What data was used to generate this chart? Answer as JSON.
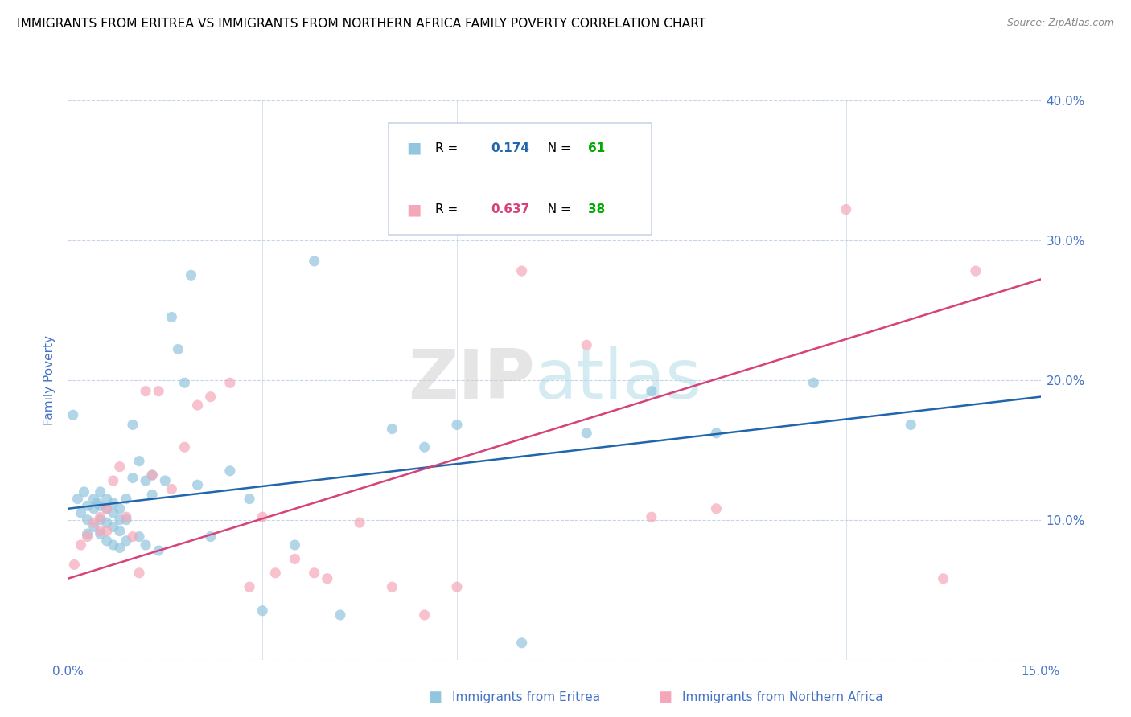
{
  "title": "IMMIGRANTS FROM ERITREA VS IMMIGRANTS FROM NORTHERN AFRICA FAMILY POVERTY CORRELATION CHART",
  "source": "Source: ZipAtlas.com",
  "xlabel_blue": "Immigrants from Eritrea",
  "xlabel_pink": "Immigrants from Northern Africa",
  "ylabel": "Family Poverty",
  "xlim": [
    0.0,
    0.15
  ],
  "ylim": [
    0.0,
    0.4
  ],
  "yticks": [
    0.0,
    0.1,
    0.2,
    0.3,
    0.4
  ],
  "xticks": [
    0.0,
    0.03,
    0.06,
    0.09,
    0.12,
    0.15
  ],
  "legend_r1": "0.174",
  "legend_n1": "61",
  "legend_r2": "0.637",
  "legend_n2": "38",
  "blue_color": "#92c5de",
  "pink_color": "#f4a7b9",
  "line_blue": "#2166ac",
  "line_pink": "#d6437a",
  "axis_label_color": "#4472c4",
  "grid_color": "#c8d4e8",
  "n_color": "#00aa00",
  "r_value_blue": "#2166ac",
  "r_value_pink": "#d6437a",
  "blue_scatter_x": [
    0.0008,
    0.0015,
    0.002,
    0.0025,
    0.003,
    0.003,
    0.003,
    0.004,
    0.004,
    0.004,
    0.0045,
    0.005,
    0.005,
    0.005,
    0.005,
    0.006,
    0.006,
    0.006,
    0.006,
    0.007,
    0.007,
    0.007,
    0.007,
    0.008,
    0.008,
    0.008,
    0.008,
    0.009,
    0.009,
    0.009,
    0.01,
    0.01,
    0.011,
    0.011,
    0.012,
    0.012,
    0.013,
    0.013,
    0.014,
    0.015,
    0.016,
    0.017,
    0.018,
    0.019,
    0.02,
    0.022,
    0.025,
    0.028,
    0.03,
    0.035,
    0.038,
    0.042,
    0.05,
    0.055,
    0.06,
    0.07,
    0.08,
    0.09,
    0.1,
    0.115,
    0.13
  ],
  "blue_scatter_y": [
    0.175,
    0.115,
    0.105,
    0.12,
    0.11,
    0.1,
    0.09,
    0.115,
    0.108,
    0.095,
    0.112,
    0.12,
    0.11,
    0.1,
    0.09,
    0.115,
    0.108,
    0.098,
    0.085,
    0.112,
    0.105,
    0.095,
    0.082,
    0.108,
    0.1,
    0.092,
    0.08,
    0.115,
    0.1,
    0.085,
    0.168,
    0.13,
    0.142,
    0.088,
    0.128,
    0.082,
    0.132,
    0.118,
    0.078,
    0.128,
    0.245,
    0.222,
    0.198,
    0.275,
    0.125,
    0.088,
    0.135,
    0.115,
    0.035,
    0.082,
    0.285,
    0.032,
    0.165,
    0.152,
    0.168,
    0.012,
    0.162,
    0.192,
    0.162,
    0.198,
    0.168
  ],
  "pink_scatter_x": [
    0.001,
    0.002,
    0.003,
    0.004,
    0.005,
    0.005,
    0.006,
    0.006,
    0.007,
    0.008,
    0.009,
    0.01,
    0.011,
    0.012,
    0.013,
    0.014,
    0.016,
    0.018,
    0.02,
    0.022,
    0.025,
    0.028,
    0.03,
    0.032,
    0.035,
    0.038,
    0.04,
    0.045,
    0.05,
    0.055,
    0.06,
    0.07,
    0.08,
    0.09,
    0.1,
    0.12,
    0.135,
    0.14
  ],
  "pink_scatter_y": [
    0.068,
    0.082,
    0.088,
    0.098,
    0.102,
    0.092,
    0.108,
    0.092,
    0.128,
    0.138,
    0.102,
    0.088,
    0.062,
    0.192,
    0.132,
    0.192,
    0.122,
    0.152,
    0.182,
    0.188,
    0.198,
    0.052,
    0.102,
    0.062,
    0.072,
    0.062,
    0.058,
    0.098,
    0.052,
    0.032,
    0.052,
    0.278,
    0.225,
    0.102,
    0.108,
    0.322,
    0.058,
    0.278
  ],
  "blue_line_x": [
    0.0,
    0.15
  ],
  "blue_line_y": [
    0.108,
    0.188
  ],
  "pink_line_x": [
    0.0,
    0.15
  ],
  "pink_line_y": [
    0.058,
    0.272
  ]
}
